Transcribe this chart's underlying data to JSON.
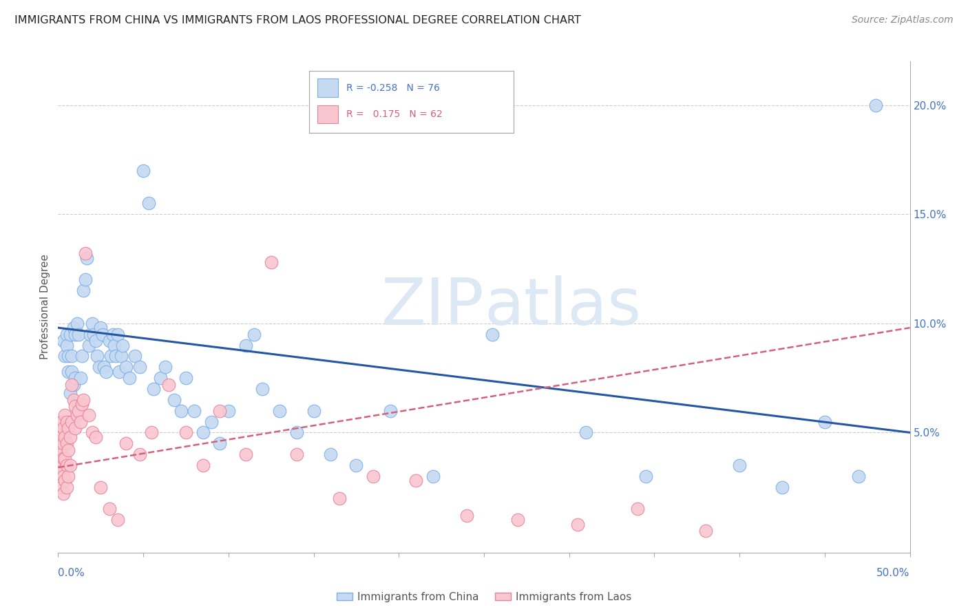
{
  "title": "IMMIGRANTS FROM CHINA VS IMMIGRANTS FROM LAOS PROFESSIONAL DEGREE CORRELATION CHART",
  "source": "Source: ZipAtlas.com",
  "ylabel": "Professional Degree",
  "xlim": [
    0.0,
    0.5
  ],
  "ylim": [
    -0.005,
    0.22
  ],
  "china_R": -0.258,
  "china_N": 76,
  "laos_R": 0.175,
  "laos_N": 62,
  "china_color": "#c5d9f1",
  "china_edge_color": "#7aaee8",
  "china_line_color": "#2456a4",
  "laos_color": "#f9c6d0",
  "laos_edge_color": "#e8829a",
  "laos_line_color": "#d4607a",
  "watermark_color": "#dde8f5",
  "background_color": "#ffffff",
  "grid_color": "#cccccc",
  "china_line_start_y": 0.098,
  "china_line_end_y": 0.05,
  "laos_line_start_y": 0.034,
  "laos_line_end_y": 0.098,
  "china_points_x": [
    0.003,
    0.004,
    0.005,
    0.005,
    0.006,
    0.006,
    0.007,
    0.007,
    0.008,
    0.008,
    0.009,
    0.009,
    0.01,
    0.01,
    0.011,
    0.012,
    0.013,
    0.014,
    0.015,
    0.016,
    0.017,
    0.018,
    0.019,
    0.02,
    0.021,
    0.022,
    0.023,
    0.024,
    0.025,
    0.026,
    0.027,
    0.028,
    0.03,
    0.031,
    0.032,
    0.033,
    0.034,
    0.035,
    0.036,
    0.037,
    0.038,
    0.04,
    0.042,
    0.045,
    0.048,
    0.05,
    0.053,
    0.056,
    0.06,
    0.063,
    0.068,
    0.072,
    0.075,
    0.08,
    0.085,
    0.09,
    0.095,
    0.1,
    0.11,
    0.115,
    0.12,
    0.13,
    0.14,
    0.15,
    0.16,
    0.175,
    0.195,
    0.22,
    0.255,
    0.31,
    0.345,
    0.4,
    0.425,
    0.45,
    0.47,
    0.48
  ],
  "china_points_y": [
    0.092,
    0.085,
    0.095,
    0.09,
    0.085,
    0.078,
    0.068,
    0.095,
    0.085,
    0.078,
    0.098,
    0.072,
    0.095,
    0.075,
    0.1,
    0.095,
    0.075,
    0.085,
    0.115,
    0.12,
    0.13,
    0.09,
    0.095,
    0.1,
    0.095,
    0.092,
    0.085,
    0.08,
    0.098,
    0.095,
    0.08,
    0.078,
    0.092,
    0.085,
    0.095,
    0.09,
    0.085,
    0.095,
    0.078,
    0.085,
    0.09,
    0.08,
    0.075,
    0.085,
    0.08,
    0.17,
    0.155,
    0.07,
    0.075,
    0.08,
    0.065,
    0.06,
    0.075,
    0.06,
    0.05,
    0.055,
    0.045,
    0.06,
    0.09,
    0.095,
    0.07,
    0.06,
    0.05,
    0.06,
    0.04,
    0.035,
    0.06,
    0.03,
    0.095,
    0.05,
    0.03,
    0.035,
    0.025,
    0.055,
    0.03,
    0.2
  ],
  "laos_points_x": [
    0.001,
    0.001,
    0.001,
    0.001,
    0.002,
    0.002,
    0.002,
    0.002,
    0.002,
    0.003,
    0.003,
    0.003,
    0.003,
    0.003,
    0.004,
    0.004,
    0.004,
    0.004,
    0.005,
    0.005,
    0.005,
    0.005,
    0.006,
    0.006,
    0.006,
    0.007,
    0.007,
    0.008,
    0.008,
    0.009,
    0.01,
    0.01,
    0.011,
    0.012,
    0.013,
    0.014,
    0.015,
    0.016,
    0.018,
    0.02,
    0.022,
    0.025,
    0.03,
    0.035,
    0.04,
    0.048,
    0.055,
    0.065,
    0.075,
    0.085,
    0.095,
    0.11,
    0.125,
    0.14,
    0.165,
    0.185,
    0.21,
    0.24,
    0.27,
    0.305,
    0.34,
    0.38
  ],
  "laos_points_y": [
    0.05,
    0.048,
    0.042,
    0.035,
    0.055,
    0.048,
    0.04,
    0.032,
    0.025,
    0.052,
    0.045,
    0.038,
    0.03,
    0.022,
    0.058,
    0.048,
    0.038,
    0.028,
    0.055,
    0.045,
    0.035,
    0.025,
    0.052,
    0.042,
    0.03,
    0.048,
    0.035,
    0.072,
    0.055,
    0.065,
    0.062,
    0.052,
    0.058,
    0.06,
    0.055,
    0.063,
    0.065,
    0.132,
    0.058,
    0.05,
    0.048,
    0.025,
    0.015,
    0.01,
    0.045,
    0.04,
    0.05,
    0.072,
    0.05,
    0.035,
    0.06,
    0.04,
    0.128,
    0.04,
    0.02,
    0.03,
    0.028,
    0.012,
    0.01,
    0.008,
    0.015,
    0.005
  ]
}
